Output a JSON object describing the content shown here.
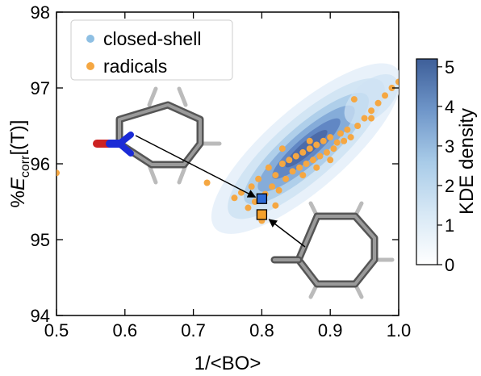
{
  "chart_data": {
    "type": "scatter",
    "xlabel": "1/<BO>",
    "ylabel_prefix": "%",
    "ylabel_symbol": "E",
    "ylabel_subscript": "corr",
    "ylabel_suffix": "[(T)]",
    "xlim": [
      0.5,
      1.0
    ],
    "ylim": [
      94,
      98
    ],
    "x_ticks": [
      "0.5",
      "0.6",
      "0.7",
      "0.8",
      "0.9",
      "1.0"
    ],
    "y_ticks": [
      "94",
      "95",
      "96",
      "97",
      "98"
    ],
    "grid": false,
    "legend_position": "top-left",
    "series": [
      {
        "name": "closed-shell",
        "color": "#8ebfe3",
        "kind": "kde-density-cloud"
      },
      {
        "name": "radicals",
        "color": "#f5a742",
        "points": [
          [
            0.5,
            95.88
          ],
          [
            0.72,
            95.75
          ],
          [
            0.76,
            95.55
          ],
          [
            0.77,
            95.62
          ],
          [
            0.78,
            95.42
          ],
          [
            0.785,
            95.7
          ],
          [
            0.79,
            95.5
          ],
          [
            0.795,
            95.8
          ],
          [
            0.8,
            95.25
          ],
          [
            0.805,
            95.6
          ],
          [
            0.81,
            95.95
          ],
          [
            0.815,
            95.7
          ],
          [
            0.82,
            95.85
          ],
          [
            0.825,
            95.65
          ],
          [
            0.83,
            96.0
          ],
          [
            0.835,
            95.8
          ],
          [
            0.84,
            96.05
          ],
          [
            0.845,
            95.9
          ],
          [
            0.85,
            96.1
          ],
          [
            0.855,
            95.95
          ],
          [
            0.86,
            96.15
          ],
          [
            0.865,
            96.0
          ],
          [
            0.87,
            96.2
          ],
          [
            0.875,
            96.05
          ],
          [
            0.88,
            96.25
          ],
          [
            0.885,
            96.1
          ],
          [
            0.89,
            96.3
          ],
          [
            0.895,
            96.15
          ],
          [
            0.9,
            96.35
          ],
          [
            0.905,
            96.2
          ],
          [
            0.91,
            96.28
          ],
          [
            0.915,
            96.4
          ],
          [
            0.92,
            96.3
          ],
          [
            0.925,
            96.45
          ],
          [
            0.93,
            96.35
          ],
          [
            0.94,
            96.5
          ],
          [
            0.95,
            96.6
          ],
          [
            0.96,
            96.7
          ],
          [
            0.97,
            96.8
          ],
          [
            0.98,
            96.9
          ],
          [
            0.99,
            97.0
          ],
          [
            1.0,
            97.08
          ],
          [
            0.935,
            96.85
          ],
          [
            0.96,
            96.6
          ],
          [
            0.86,
            95.85
          ],
          [
            0.87,
            96.3
          ],
          [
            0.83,
            96.2
          ],
          [
            0.88,
            95.95
          ],
          [
            0.82,
            95.45
          ],
          [
            0.9,
            96.05
          ]
        ]
      }
    ],
    "highlighted_points": [
      {
        "x": 0.8,
        "y": 95.54,
        "color": "#2e6bd6",
        "molecule": "pyridine-N-oxide"
      },
      {
        "x": 0.8,
        "y": 95.33,
        "color": "#f5a02a",
        "molecule": "benzyl radical"
      }
    ],
    "colorbar": {
      "label": "KDE density",
      "min": 0,
      "max": 5.2,
      "ticks": [
        "0",
        "1",
        "2",
        "3",
        "4",
        "5"
      ],
      "color_low": "#ffffff",
      "color_high": "#3e5f99"
    }
  }
}
